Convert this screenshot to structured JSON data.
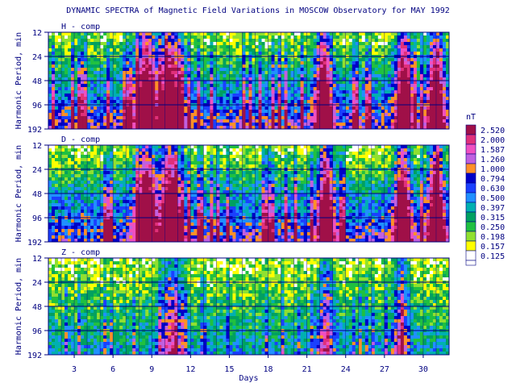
{
  "title": "DYNAMIC SPECTRA of Magnetic Field Variations in MOSCOW Observatory for MAY 1992",
  "chart_data": [
    {
      "type": "heatmap",
      "panel_label": "H - comp",
      "ylabel": "Harmonic Period, min",
      "y_ticks": [
        "12",
        "24",
        "48",
        "96",
        "192"
      ],
      "x_ticks": [
        "3",
        "6",
        "9",
        "12",
        "15",
        "18",
        "21",
        "24",
        "27",
        "30"
      ],
      "xlim": [
        1,
        32
      ],
      "active_days": [
        8.6,
        10.4,
        22.3,
        28.5,
        31.0
      ],
      "intensity": "high"
    },
    {
      "type": "heatmap",
      "panel_label": "D - comp",
      "ylabel": "Harmonic Period, min",
      "y_ticks": [
        "12",
        "24",
        "48",
        "96",
        "192"
      ],
      "x_ticks": [
        "3",
        "6",
        "9",
        "12",
        "15",
        "18",
        "21",
        "24",
        "27",
        "30"
      ],
      "xlim": [
        1,
        32
      ],
      "active_days": [
        8.6,
        10.4,
        22.5,
        28.4,
        31.0
      ],
      "intensity": "high"
    },
    {
      "type": "heatmap",
      "panel_label": "Z - comp",
      "ylabel": "Harmonic Period, min",
      "y_ticks": [
        "12",
        "24",
        "48",
        "96",
        "192"
      ],
      "x_ticks": [
        "3",
        "6",
        "9",
        "12",
        "15",
        "18",
        "21",
        "24",
        "27",
        "30"
      ],
      "xlabel": "Days",
      "xlim": [
        1,
        32
      ],
      "active_days": [
        10.5,
        22.5,
        28.3
      ],
      "intensity": "low"
    }
  ],
  "colorbar": {
    "unit": "nT",
    "levels": [
      "2.520",
      "2.000",
      "1.587",
      "1.260",
      "1.000",
      "0.794",
      "0.630",
      "0.500",
      "0.397",
      "0.315",
      "0.250",
      "0.198",
      "0.157",
      "0.125"
    ],
    "colors": [
      "#a01048",
      "#e0307a",
      "#f050c0",
      "#c060e0",
      "#ff9028",
      "#0000c8",
      "#1a40ff",
      "#2090ff",
      "#00b0b0",
      "#00a060",
      "#20c040",
      "#90e030",
      "#ffff00",
      "#ffffff"
    ]
  },
  "panel_bg": "#ffff90"
}
